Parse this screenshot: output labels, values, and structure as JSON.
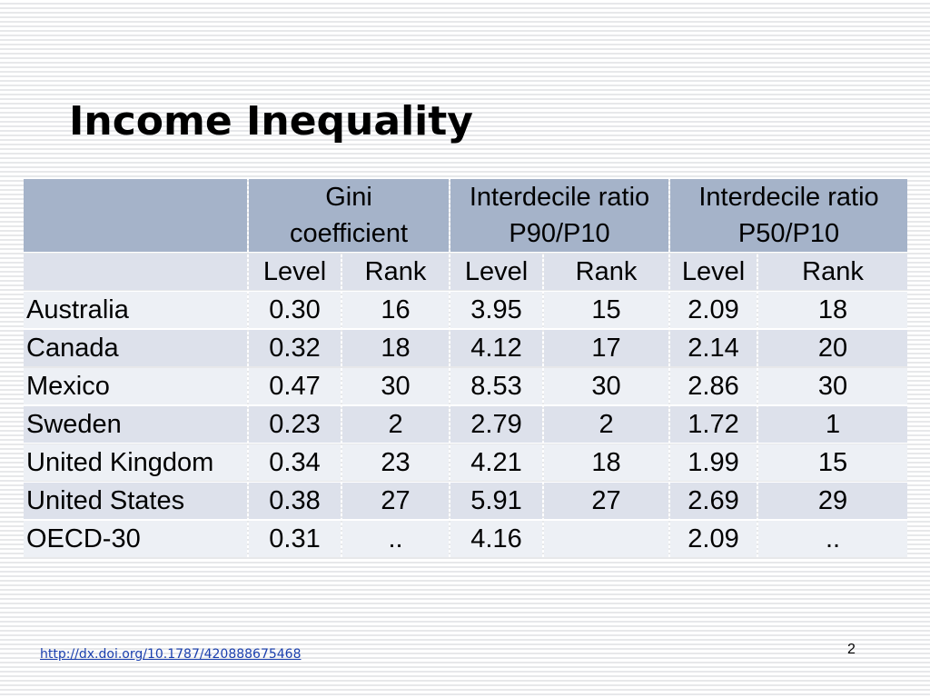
{
  "slide": {
    "title": "Income Inequality",
    "source_link": "http://dx.doi.org/10.1787/420888675468",
    "page_number": "2"
  },
  "colors": {
    "header_bg": "#a5b3c9",
    "row_dark": "#dde1eb",
    "row_light": "#edf0f5",
    "link": "#1a3fae"
  },
  "chart_data": {
    "type": "table",
    "group_headers": [
      {
        "line1": "Gini",
        "line2": "coefficient"
      },
      {
        "line1": "Interdecile ratio",
        "line2": "P90/P10"
      },
      {
        "line1": "Interdecile ratio",
        "line2": "P50/P10"
      }
    ],
    "sub_headers": [
      "Level",
      "Rank",
      "Level",
      "Rank",
      "Level",
      "Rank"
    ],
    "rows": [
      {
        "country": "Australia",
        "values": [
          "0.30",
          "16",
          "3.95",
          "15",
          "2.09",
          "18"
        ]
      },
      {
        "country": "Canada",
        "values": [
          "0.32",
          "18",
          "4.12",
          "17",
          "2.14",
          "20"
        ]
      },
      {
        "country": "Mexico",
        "values": [
          "0.47",
          "30",
          "8.53",
          "30",
          "2.86",
          "30"
        ]
      },
      {
        "country": "Sweden",
        "values": [
          "0.23",
          "2",
          "2.79",
          "2",
          "1.72",
          "1"
        ]
      },
      {
        "country": "United Kingdom",
        "values": [
          "0.34",
          "23",
          "4.21",
          "18",
          "1.99",
          "15"
        ]
      },
      {
        "country": "United States",
        "values": [
          "0.38",
          "27",
          "5.91",
          "27",
          "2.69",
          "29"
        ]
      },
      {
        "country": "OECD-30",
        "values": [
          "0.31",
          "..",
          "4.16",
          "",
          "2.09",
          ".."
        ]
      }
    ]
  }
}
